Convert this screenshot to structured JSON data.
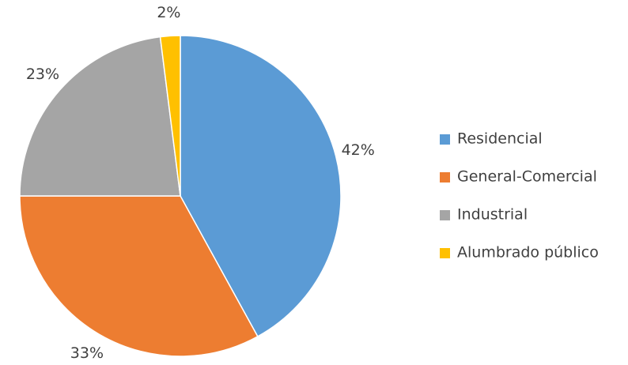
{
  "chart_data": {
    "type": "pie",
    "categories": [
      "Residencial",
      "General-Comercial",
      "Industrial",
      "Alumbrado público"
    ],
    "values": [
      42,
      33,
      23,
      2
    ],
    "value_labels": [
      "42%",
      "33%",
      "23%",
      "2%"
    ],
    "colors": [
      "#5b9bd5",
      "#ed7d31",
      "#a5a5a5",
      "#ffc000"
    ],
    "legend": "right"
  }
}
